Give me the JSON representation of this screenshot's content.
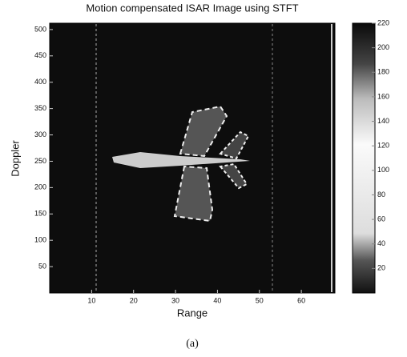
{
  "chart_data": {
    "type": "image",
    "title": "Motion compensated ISAR Image using STFT",
    "xlabel": "Range",
    "ylabel": "Doppler",
    "xlim": [
      0,
      68
    ],
    "xticks": [
      10,
      20,
      30,
      40,
      50,
      60
    ],
    "ylim": [
      0,
      512
    ],
    "yticks": [
      50,
      100,
      150,
      200,
      250,
      300,
      350,
      400,
      450,
      500
    ],
    "colorbar": {
      "lim": [
        0,
        220
      ],
      "ticks": [
        20,
        40,
        60,
        80,
        100,
        120,
        140,
        160,
        180,
        200,
        220
      ]
    }
  },
  "caption": "(a)"
}
